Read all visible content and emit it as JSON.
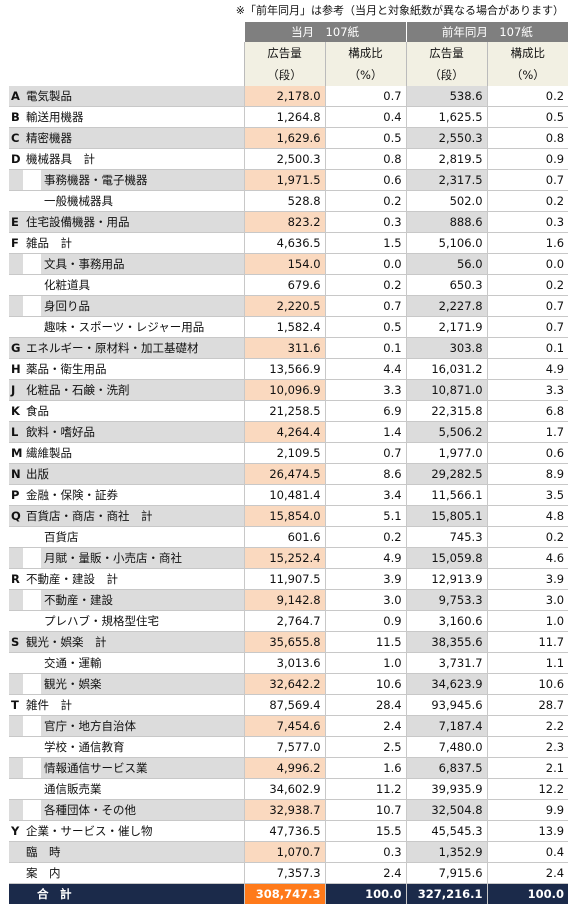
{
  "note": "※「前年同月」は参考（当月と対象紙数が異なる場合があります）",
  "header": {
    "current": "当月　107紙",
    "previous": "前年同月　107紙",
    "ad_volume": "広告量",
    "ad_unit": "（段）",
    "share": "構成比",
    "share_unit": "（%）"
  },
  "rows": [
    {
      "code": "A",
      "name": "電気製品",
      "level": 0,
      "shade": true,
      "cur": "2,178.0",
      "cur_pct": "0.7",
      "prev": "538.6",
      "prev_pct": "0.2"
    },
    {
      "code": "B",
      "name": "輸送用機器",
      "level": 0,
      "shade": false,
      "cur": "1,264.8",
      "cur_pct": "0.4",
      "prev": "1,625.5",
      "prev_pct": "0.5"
    },
    {
      "code": "C",
      "name": "精密機器",
      "level": 0,
      "shade": true,
      "cur": "1,629.6",
      "cur_pct": "0.5",
      "prev": "2,550.3",
      "prev_pct": "0.8"
    },
    {
      "code": "D",
      "name": "機械器具　計",
      "level": 0,
      "shade": false,
      "cur": "2,500.3",
      "cur_pct": "0.8",
      "prev": "2,819.5",
      "prev_pct": "0.9"
    },
    {
      "code": "",
      "name": "事務機器・電子機器",
      "level": 1,
      "shade": true,
      "cur": "1,971.5",
      "cur_pct": "0.6",
      "prev": "2,317.5",
      "prev_pct": "0.7"
    },
    {
      "code": "",
      "name": "一般機械器具",
      "level": 1,
      "shade": false,
      "cur": "528.8",
      "cur_pct": "0.2",
      "prev": "502.0",
      "prev_pct": "0.2"
    },
    {
      "code": "E",
      "name": "住宅設備機器・用品",
      "level": 0,
      "shade": true,
      "cur": "823.2",
      "cur_pct": "0.3",
      "prev": "888.6",
      "prev_pct": "0.3"
    },
    {
      "code": "F",
      "name": "雑品　計",
      "level": 0,
      "shade": false,
      "cur": "4,636.5",
      "cur_pct": "1.5",
      "prev": "5,106.0",
      "prev_pct": "1.6"
    },
    {
      "code": "",
      "name": "文具・事務用品",
      "level": 1,
      "shade": true,
      "cur": "154.0",
      "cur_pct": "0.0",
      "prev": "56.0",
      "prev_pct": "0.0"
    },
    {
      "code": "",
      "name": "化粧道具",
      "level": 1,
      "shade": false,
      "cur": "679.6",
      "cur_pct": "0.2",
      "prev": "650.3",
      "prev_pct": "0.2"
    },
    {
      "code": "",
      "name": "身回り品",
      "level": 1,
      "shade": true,
      "cur": "2,220.5",
      "cur_pct": "0.7",
      "prev": "2,227.8",
      "prev_pct": "0.7"
    },
    {
      "code": "",
      "name": "趣味・スポーツ・レジャー用品",
      "level": 1,
      "shade": false,
      "cur": "1,582.4",
      "cur_pct": "0.5",
      "prev": "2,171.9",
      "prev_pct": "0.7"
    },
    {
      "code": "G",
      "name": "エネルギー・原材料・加工基礎材",
      "level": 0,
      "shade": true,
      "cur": "311.6",
      "cur_pct": "0.1",
      "prev": "303.8",
      "prev_pct": "0.1"
    },
    {
      "code": "H",
      "name": "薬品・衛生用品",
      "level": 0,
      "shade": false,
      "cur": "13,566.9",
      "cur_pct": "4.4",
      "prev": "16,031.2",
      "prev_pct": "4.9"
    },
    {
      "code": "J",
      "name": "化粧品・石鹸・洗剤",
      "level": 0,
      "shade": true,
      "cur": "10,096.9",
      "cur_pct": "3.3",
      "prev": "10,871.0",
      "prev_pct": "3.3"
    },
    {
      "code": "K",
      "name": "食品",
      "level": 0,
      "shade": false,
      "cur": "21,258.5",
      "cur_pct": "6.9",
      "prev": "22,315.8",
      "prev_pct": "6.8"
    },
    {
      "code": "L",
      "name": "飲料・嗜好品",
      "level": 0,
      "shade": true,
      "cur": "4,264.4",
      "cur_pct": "1.4",
      "prev": "5,506.2",
      "prev_pct": "1.7"
    },
    {
      "code": "M",
      "name": "繊維製品",
      "level": 0,
      "shade": false,
      "cur": "2,109.5",
      "cur_pct": "0.7",
      "prev": "1,977.0",
      "prev_pct": "0.6"
    },
    {
      "code": "N",
      "name": "出版",
      "level": 0,
      "shade": true,
      "cur": "26,474.5",
      "cur_pct": "8.6",
      "prev": "29,282.5",
      "prev_pct": "8.9"
    },
    {
      "code": "P",
      "name": "金融・保険・証券",
      "level": 0,
      "shade": false,
      "cur": "10,481.4",
      "cur_pct": "3.4",
      "prev": "11,566.1",
      "prev_pct": "3.5"
    },
    {
      "code": "Q",
      "name": "百貨店・商店・商社　計",
      "level": 0,
      "shade": true,
      "cur": "15,854.0",
      "cur_pct": "5.1",
      "prev": "15,805.1",
      "prev_pct": "4.8"
    },
    {
      "code": "",
      "name": "百貨店",
      "level": 1,
      "shade": false,
      "cur": "601.6",
      "cur_pct": "0.2",
      "prev": "745.3",
      "prev_pct": "0.2"
    },
    {
      "code": "",
      "name": "月賦・量販・小売店・商社",
      "level": 1,
      "shade": true,
      "cur": "15,252.4",
      "cur_pct": "4.9",
      "prev": "15,059.8",
      "prev_pct": "4.6"
    },
    {
      "code": "R",
      "name": "不動産・建設　計",
      "level": 0,
      "shade": false,
      "cur": "11,907.5",
      "cur_pct": "3.9",
      "prev": "12,913.9",
      "prev_pct": "3.9"
    },
    {
      "code": "",
      "name": "不動産・建設",
      "level": 1,
      "shade": true,
      "cur": "9,142.8",
      "cur_pct": "3.0",
      "prev": "9,753.3",
      "prev_pct": "3.0"
    },
    {
      "code": "",
      "name": "プレハブ・規格型住宅",
      "level": 1,
      "shade": false,
      "cur": "2,764.7",
      "cur_pct": "0.9",
      "prev": "3,160.6",
      "prev_pct": "1.0"
    },
    {
      "code": "S",
      "name": "観光・娯楽　計",
      "level": 0,
      "shade": true,
      "cur": "35,655.8",
      "cur_pct": "11.5",
      "prev": "38,355.6",
      "prev_pct": "11.7"
    },
    {
      "code": "",
      "name": "交通・運輸",
      "level": 1,
      "shade": false,
      "cur": "3,013.6",
      "cur_pct": "1.0",
      "prev": "3,731.7",
      "prev_pct": "1.1"
    },
    {
      "code": "",
      "name": "観光・娯楽",
      "level": 1,
      "shade": true,
      "cur": "32,642.2",
      "cur_pct": "10.6",
      "prev": "34,623.9",
      "prev_pct": "10.6"
    },
    {
      "code": "T",
      "name": "雑件　計",
      "level": 0,
      "shade": false,
      "cur": "87,569.4",
      "cur_pct": "28.4",
      "prev": "93,945.6",
      "prev_pct": "28.7"
    },
    {
      "code": "",
      "name": "官庁・地方自治体",
      "level": 1,
      "shade": true,
      "cur": "7,454.6",
      "cur_pct": "2.4",
      "prev": "7,187.4",
      "prev_pct": "2.2"
    },
    {
      "code": "",
      "name": "学校・通信教育",
      "level": 1,
      "shade": false,
      "cur": "7,577.0",
      "cur_pct": "2.5",
      "prev": "7,480.0",
      "prev_pct": "2.3"
    },
    {
      "code": "",
      "name": "情報通信サービス業",
      "level": 1,
      "shade": true,
      "cur": "4,996.2",
      "cur_pct": "1.6",
      "prev": "6,837.5",
      "prev_pct": "2.1"
    },
    {
      "code": "",
      "name": "通信販売業",
      "level": 1,
      "shade": false,
      "cur": "34,602.9",
      "cur_pct": "11.2",
      "prev": "39,935.9",
      "prev_pct": "12.2"
    },
    {
      "code": "",
      "name": "各種団体・その他",
      "level": 1,
      "shade": true,
      "cur": "32,938.7",
      "cur_pct": "10.7",
      "prev": "32,504.8",
      "prev_pct": "9.9"
    },
    {
      "code": "Y",
      "name": "企業・サービス・催し物",
      "level": 0,
      "shade": false,
      "cur": "47,736.5",
      "cur_pct": "15.5",
      "prev": "45,545.3",
      "prev_pct": "13.9"
    },
    {
      "code": "",
      "name": "臨　時",
      "level": 0,
      "shade": true,
      "cur": "1,070.7",
      "cur_pct": "0.3",
      "prev": "1,352.9",
      "prev_pct": "0.4"
    },
    {
      "code": "",
      "name": "案　内",
      "level": 0,
      "shade": false,
      "cur": "7,357.3",
      "cur_pct": "2.4",
      "prev": "7,915.6",
      "prev_pct": "2.4"
    }
  ],
  "total": {
    "name": "合　計",
    "cur": "308,747.3",
    "cur_pct": "100.0",
    "prev": "327,216.1",
    "prev_pct": "100.0"
  }
}
